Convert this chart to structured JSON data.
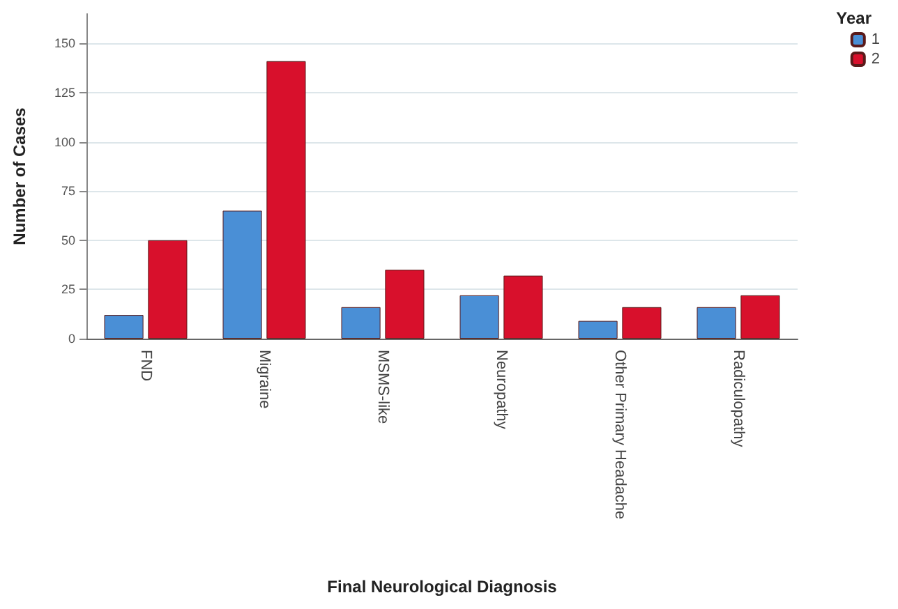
{
  "chart_data": {
    "type": "bar",
    "xlabel": "Final Neurological Diagnosis",
    "ylabel": "Number of Cases",
    "legend_title": "Year",
    "categories": [
      "FND",
      "Migraine",
      "MSMS-like",
      "Neuropathy",
      "Other Primary Headache",
      "Radiculopathy"
    ],
    "series": [
      {
        "name": "1",
        "color": "#4a8fd6",
        "values": [
          12,
          65,
          16,
          22,
          9,
          16
        ]
      },
      {
        "name": "2",
        "color": "#d8102c",
        "values": [
          50,
          141,
          35,
          32,
          16,
          22
        ]
      }
    ],
    "ylim": [
      0,
      165
    ],
    "yticks": [
      0,
      25,
      50,
      75,
      100,
      125,
      150
    ],
    "grid": "y",
    "legend": "top right"
  }
}
